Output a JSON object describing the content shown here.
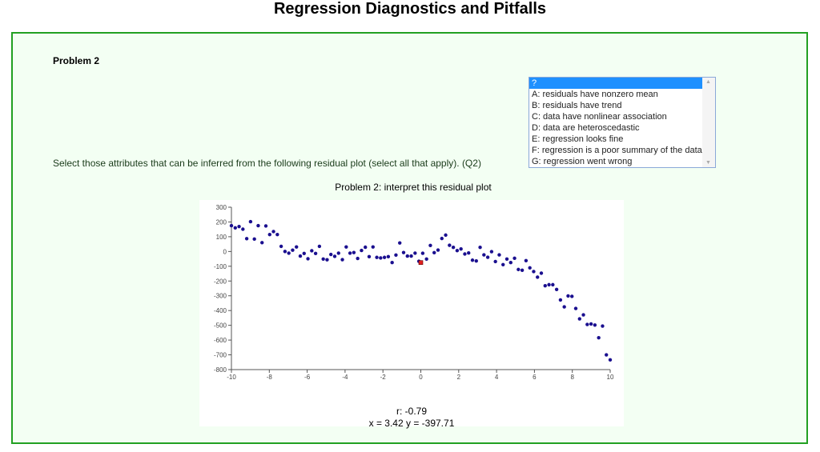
{
  "title": "Regression Diagnostics and Pitfalls",
  "problem_label": "Problem 2",
  "question": "Select those attributes that can be inferred from the following residual plot (select all that apply). (Q2)",
  "listbox": {
    "options": [
      "?",
      "A: residuals have nonzero mean",
      "B: residuals have trend",
      "C: data have nonlinear association",
      "D: data are heteroscedastic",
      "E: regression looks fine",
      "F: regression is a poor summary of the data",
      "G: regression went wrong"
    ],
    "selected": "?"
  },
  "colors": {
    "border": "#22a022",
    "panel_bg": "#f3fff3",
    "point": "#1a0f8f",
    "highlight": "#e02020",
    "selection": "#1e90ff"
  },
  "chart_data": {
    "type": "scatter",
    "title": "Problem 2: interpret this residual plot",
    "xlim": [
      -10,
      10
    ],
    "ylim": [
      -800,
      300
    ],
    "xticks": [
      -10,
      -8,
      -6,
      -4,
      -2,
      0,
      2,
      4,
      6,
      8,
      10
    ],
    "yticks": [
      300,
      200,
      100,
      0,
      -100,
      -200,
      -300,
      -400,
      -500,
      -600,
      -700,
      -800
    ],
    "x_range_points": [
      -10,
      10
    ],
    "y": [
      175,
      160,
      169,
      151,
      87,
      202,
      84,
      175,
      60,
      173,
      115,
      135,
      115,
      35,
      0,
      -11,
      9,
      31,
      -31,
      -13,
      -49,
      5,
      -13,
      35,
      -51,
      -56,
      -20,
      -33,
      -11,
      -55,
      31,
      -11,
      -7,
      -47,
      7,
      29,
      -35,
      31,
      -40,
      -44,
      -40,
      -35,
      -75,
      -24,
      58,
      -7,
      -31,
      -31,
      -11,
      -66,
      -12,
      -51,
      41,
      -8,
      10,
      88,
      111,
      42,
      28,
      6,
      17,
      -17,
      -10,
      -59,
      -64,
      28,
      -23,
      -39,
      -1,
      -68,
      -23,
      -89,
      -51,
      -75,
      -46,
      -122,
      -127,
      -62,
      -111,
      -136,
      -174,
      -147,
      -232,
      -225,
      -225,
      -257,
      -328,
      -375,
      -301,
      -304,
      -386,
      -456,
      -429,
      -494,
      -491,
      -498,
      -584,
      -505,
      -700,
      -734
    ],
    "highlight_point": {
      "x": 0,
      "y": -75
    },
    "r_label": "r: -0.79",
    "cursor_label": "x = 3.42 y = -397.71"
  }
}
